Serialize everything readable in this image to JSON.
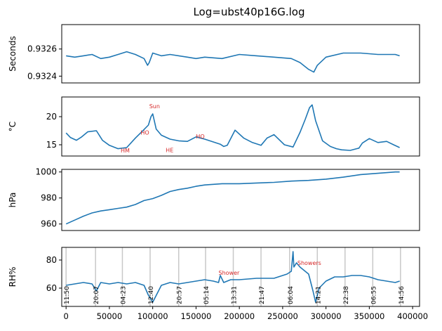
{
  "title": "Log=ubst40p16G.log",
  "colors": {
    "line": "#1f77b4",
    "annotation": "#d62728",
    "marker": "#c8c8c8",
    "frame": "#000000"
  },
  "x_axis": {
    "ticks": [
      0,
      50000,
      100000,
      150000,
      200000,
      250000,
      300000,
      350000,
      400000
    ],
    "tick_labels": [
      "0",
      "50000",
      "100000",
      "150000",
      "200000",
      "250000",
      "300000",
      "350000",
      "400000"
    ],
    "range": [
      -5000,
      408000
    ]
  },
  "chart_data": [
    {
      "type": "line",
      "ylabel": "Seconds",
      "ylim": [
        0.93235,
        0.93278
      ],
      "yticks": [
        0.9324,
        0.9326
      ],
      "ytick_labels": [
        "0.9324",
        "0.9326"
      ],
      "x": [
        0,
        10000,
        20000,
        30000,
        40000,
        50000,
        60000,
        70000,
        80000,
        90000,
        94000,
        96000,
        100000,
        110000,
        120000,
        140000,
        150000,
        160000,
        180000,
        200000,
        220000,
        240000,
        260000,
        270000,
        280000,
        286000,
        290000,
        300000,
        320000,
        340000,
        360000,
        380000,
        385000
      ],
      "y": [
        0.93255,
        0.93254,
        0.93255,
        0.93256,
        0.93253,
        0.93254,
        0.93256,
        0.93258,
        0.93256,
        0.93253,
        0.93248,
        0.9325,
        0.93257,
        0.93255,
        0.93256,
        0.93254,
        0.93253,
        0.93254,
        0.93253,
        0.93256,
        0.93255,
        0.93254,
        0.93253,
        0.9325,
        0.93245,
        0.93243,
        0.93248,
        0.93254,
        0.93257,
        0.93257,
        0.93256,
        0.93256,
        0.93255
      ],
      "annotations": []
    },
    {
      "type": "line",
      "ylabel": "°C",
      "ylim": [
        13.0,
        23.5
      ],
      "yticks": [
        15,
        20
      ],
      "ytick_labels": [
        "15",
        "20"
      ],
      "x": [
        0,
        5000,
        12000,
        18000,
        25000,
        35000,
        42000,
        50000,
        60000,
        70000,
        80000,
        88000,
        95000,
        98000,
        100000,
        104000,
        110000,
        120000,
        130000,
        140000,
        150000,
        160000,
        170000,
        178000,
        182000,
        186000,
        195000,
        205000,
        215000,
        225000,
        232000,
        240000,
        252000,
        262000,
        270000,
        276000,
        281000,
        284000,
        288000,
        296000,
        305000,
        312000,
        318000,
        328000,
        338000,
        342000,
        350000,
        360000,
        370000,
        378000,
        385000
      ],
      "y": [
        17.1,
        16.3,
        15.8,
        16.4,
        17.3,
        17.5,
        15.8,
        14.9,
        14.3,
        14.5,
        16.2,
        17.4,
        18.5,
        20.0,
        20.5,
        17.8,
        16.7,
        16.0,
        15.7,
        15.6,
        16.4,
        16.0,
        15.5,
        15.1,
        14.7,
        14.9,
        17.6,
        16.2,
        15.4,
        14.9,
        16.2,
        16.8,
        15.0,
        14.6,
        17.2,
        19.5,
        21.6,
        22.1,
        19.3,
        15.7,
        14.7,
        14.3,
        14.1,
        14.0,
        14.4,
        15.3,
        16.1,
        15.4,
        15.6,
        15.0,
        14.5
      ],
      "annotations": [
        {
          "text": "Sun",
          "x": 96000,
          "y": 21.5
        },
        {
          "text": "HO",
          "x": 86000,
          "y": 16.8
        },
        {
          "text": "HM",
          "x": 63000,
          "y": 13.6
        },
        {
          "text": "HE",
          "x": 115000,
          "y": 13.7
        },
        {
          "text": "HO",
          "x": 150000,
          "y": 16.1
        }
      ]
    },
    {
      "type": "line",
      "ylabel": "hPa",
      "ylim": [
        955,
        1002
      ],
      "yticks": [
        960,
        980,
        1000
      ],
      "ytick_labels": [
        "960",
        "980",
        "1000"
      ],
      "x": [
        0,
        10000,
        20000,
        30000,
        40000,
        50000,
        60000,
        70000,
        80000,
        90000,
        100000,
        110000,
        120000,
        130000,
        140000,
        150000,
        160000,
        180000,
        200000,
        220000,
        240000,
        260000,
        280000,
        300000,
        320000,
        340000,
        360000,
        380000,
        385000
      ],
      "y": [
        960,
        963,
        966,
        968.5,
        970,
        971,
        972,
        973,
        975,
        978,
        979.5,
        982,
        985,
        986.5,
        987.5,
        989,
        990,
        991,
        991,
        991.5,
        992,
        993,
        993.5,
        994.5,
        996,
        998,
        999,
        1000,
        1000
      ],
      "annotations": []
    },
    {
      "type": "line",
      "ylabel": "RH%",
      "ylim": [
        47,
        89
      ],
      "yticks": [
        60,
        80
      ],
      "ytick_labels": [
        "60",
        "80"
      ],
      "x": [
        0,
        10000,
        20000,
        30000,
        35000,
        40000,
        50000,
        60000,
        70000,
        80000,
        90000,
        95000,
        100000,
        110000,
        120000,
        130000,
        140000,
        150000,
        160000,
        170000,
        176000,
        178000,
        182000,
        190000,
        200000,
        220000,
        240000,
        255000,
        260000,
        262000,
        263000,
        266000,
        270000,
        280000,
        285000,
        288000,
        292000,
        300000,
        310000,
        320000,
        330000,
        340000,
        350000,
        360000,
        370000,
        380000,
        385000
      ],
      "y": [
        62,
        63,
        64,
        63,
        58,
        64,
        63,
        64,
        63,
        64,
        62,
        55,
        50,
        62,
        64,
        63,
        64,
        65,
        66,
        65,
        64,
        69,
        64,
        66,
        66,
        67,
        67,
        70,
        72,
        86,
        75,
        78,
        75,
        70,
        58,
        50,
        60,
        65,
        68,
        68,
        69,
        69,
        68,
        66,
        65,
        64,
        65
      ],
      "annotations": [
        {
          "text": "Shower",
          "x": 176000,
          "y": 69.5
        },
        {
          "text": "Showers",
          "x": 267000,
          "y": 76.5
        }
      ],
      "time_markers": [
        {
          "x": 0,
          "label": "11:50"
        },
        {
          "x": 34000,
          "label": "20:07"
        },
        {
          "x": 65000,
          "label": "04:23"
        },
        {
          "x": 97000,
          "label": "12:40"
        },
        {
          "x": 130000,
          "label": "20:57"
        },
        {
          "x": 161000,
          "label": "05:14"
        },
        {
          "x": 193000,
          "label": "13:31"
        },
        {
          "x": 225000,
          "label": "21:47"
        },
        {
          "x": 258000,
          "label": "06:04"
        },
        {
          "x": 290000,
          "label": "14:21"
        },
        {
          "x": 322000,
          "label": "22:38"
        },
        {
          "x": 354000,
          "label": "06:55"
        },
        {
          "x": 386000,
          "label": "14:56"
        }
      ]
    }
  ]
}
